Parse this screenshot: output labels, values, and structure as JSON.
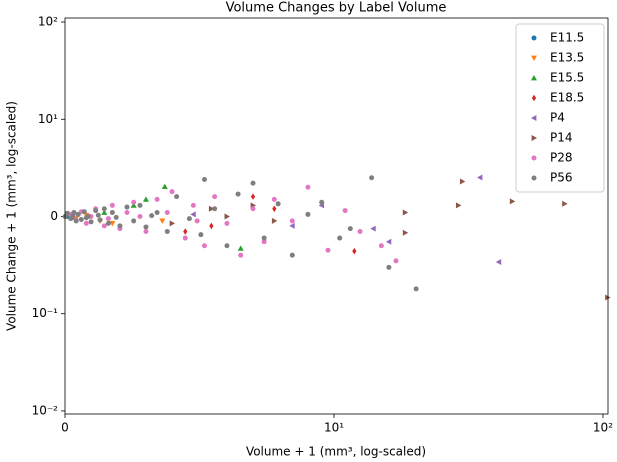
{
  "chart_data": {
    "type": "scatter",
    "title": "Volume Changes by Label Volume",
    "x_label": "Volume + 1 (mm³, log-scaled)",
    "y_label": "Volume Change + 1 (mm³, log-scaled)",
    "xscale": "log",
    "yscale": "log",
    "xlim": [
      1,
      104.4
    ],
    "ylim": [
      0.0093,
      110
    ],
    "xticks": [
      {
        "value": 1,
        "label": "0"
      },
      {
        "value": 10,
        "label": "10¹"
      },
      {
        "value": 100,
        "label": "10²"
      }
    ],
    "yticks": [
      {
        "value": 0.01,
        "label": "10⁻²"
      },
      {
        "value": 0.1,
        "label": "10⁻¹"
      },
      {
        "value": 1,
        "label": "0"
      },
      {
        "value": 10,
        "label": "10¹"
      },
      {
        "value": 100,
        "label": "10²"
      }
    ],
    "legend": "upper right",
    "series": [
      {
        "name": "E11.5",
        "color": "#1f77b4",
        "marker": "circle",
        "x": [
          1.02,
          1.04,
          1.06,
          1.03
        ],
        "values": [
          1.0,
          1.05,
          0.97,
          1.02
        ]
      },
      {
        "name": "E13.5",
        "color": "#ff7f0e",
        "marker": "triangle-down",
        "x": [
          1.1,
          1.2,
          1.35,
          1.5,
          2.3
        ],
        "values": [
          0.95,
          1.03,
          0.9,
          0.85,
          0.9
        ]
      },
      {
        "name": "E15.5",
        "color": "#2ca02c",
        "marker": "triangle-up",
        "x": [
          2.35,
          1.4,
          1.8,
          2.0,
          4.5
        ],
        "values": [
          2.03,
          1.1,
          1.3,
          1.5,
          0.47
        ]
      },
      {
        "name": "E18.5",
        "color": "#d62728",
        "marker": "diamond",
        "x": [
          11.9,
          5.0,
          3.5,
          2.8,
          6.0
        ],
        "values": [
          0.44,
          1.6,
          0.8,
          0.7,
          1.2
        ]
      },
      {
        "name": "P4",
        "color": "#9467bd",
        "marker": "triangle-left",
        "x": [
          34.9,
          41,
          14,
          16,
          9,
          7,
          3
        ],
        "values": [
          2.52,
          0.34,
          0.75,
          0.55,
          1.3,
          0.8,
          1.05
        ]
      },
      {
        "name": "P14",
        "color": "#8c564b",
        "marker": "triangle-right",
        "x": [
          30,
          29,
          46,
          72,
          104,
          18.4,
          18.4,
          5,
          6,
          3.5,
          2.5,
          4
        ],
        "values": [
          2.29,
          1.3,
          1.43,
          1.35,
          0.147,
          1.1,
          0.68,
          1.3,
          0.9,
          1.2,
          0.85,
          1.0
        ]
      },
      {
        "name": "P28",
        "color": "#e377c2",
        "marker": "circle",
        "x": [
          1.05,
          1.1,
          1.15,
          1.2,
          1.3,
          1.4,
          1.5,
          1.6,
          1.7,
          1.8,
          2.0,
          2.2,
          2.5,
          2.8,
          3.0,
          3.3,
          3.6,
          4.0,
          4.5,
          5.0,
          5.5,
          6.0,
          7.0,
          8.0,
          9.5,
          11,
          12.5,
          15,
          17,
          1.25,
          1.45,
          1.9,
          2.4,
          3.1
        ],
        "values": [
          1.05,
          0.92,
          1.12,
          0.85,
          1.2,
          0.8,
          1.3,
          0.75,
          1.1,
          1.4,
          0.7,
          1.5,
          1.8,
          0.6,
          1.3,
          0.5,
          1.6,
          0.85,
          0.4,
          1.2,
          0.55,
          1.5,
          0.9,
          2.0,
          0.45,
          1.15,
          0.7,
          0.5,
          0.35,
          1.0,
          0.95,
          1.0,
          1.1,
          0.9
        ]
      },
      {
        "name": "P56",
        "color": "#7f7f7f",
        "marker": "circle",
        "x": [
          1.0,
          1.02,
          1.05,
          1.08,
          1.1,
          1.12,
          1.15,
          1.18,
          1.2,
          1.25,
          1.3,
          1.35,
          1.4,
          1.45,
          1.5,
          1.6,
          1.7,
          1.8,
          1.9,
          2.0,
          2.2,
          2.4,
          2.6,
          2.9,
          3.2,
          3.3,
          3.6,
          4.0,
          4.4,
          5.0,
          5.5,
          6.2,
          7.0,
          8.0,
          9.0,
          10.5,
          11.5,
          13.8,
          16,
          20.2,
          1.07,
          1.22,
          1.33,
          1.55,
          2.1
        ],
        "values": [
          1.0,
          1.08,
          0.95,
          1.1,
          0.9,
          1.05,
          0.93,
          1.12,
          0.97,
          0.88,
          1.15,
          0.92,
          1.2,
          0.85,
          1.1,
          0.8,
          1.25,
          0.9,
          1.3,
          0.78,
          1.1,
          0.7,
          1.6,
          0.95,
          0.65,
          2.4,
          1.2,
          0.5,
          1.7,
          2.2,
          0.6,
          1.35,
          0.4,
          1.05,
          1.4,
          0.6,
          0.75,
          2.5,
          0.3,
          0.18,
          1.02,
          1.0,
          1.03,
          0.98,
          1.02
        ]
      }
    ]
  }
}
